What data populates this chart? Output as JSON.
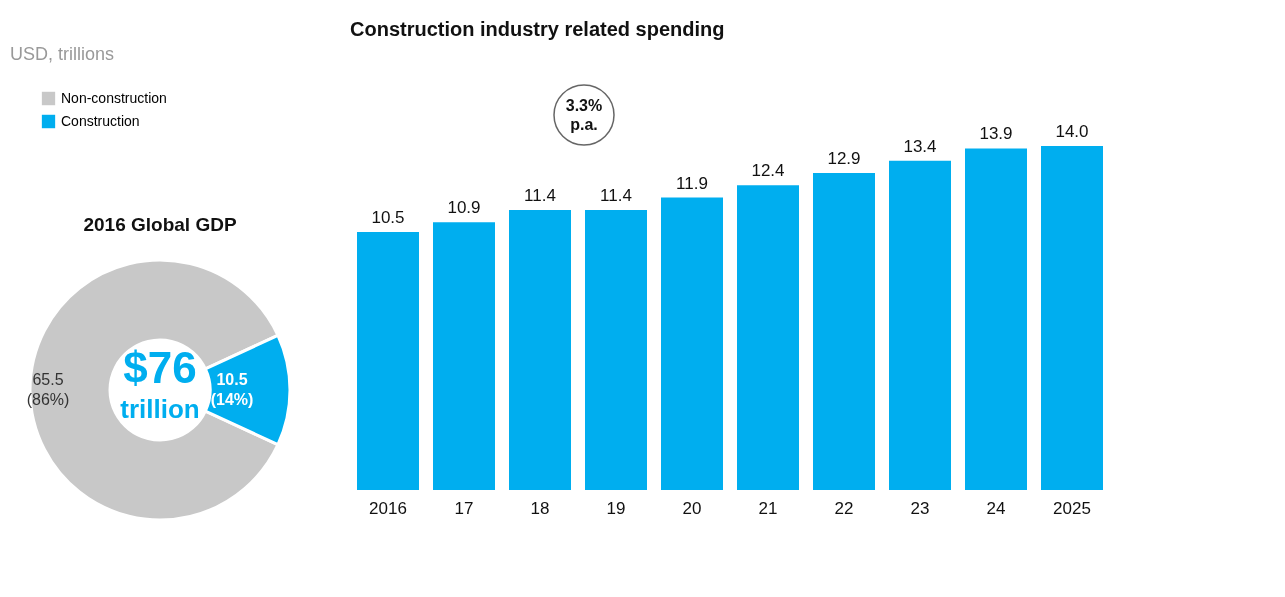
{
  "chart_data": [
    {
      "type": "donut",
      "title": "2016 Global GDP",
      "categories": [
        "Non-construction",
        "Construction"
      ],
      "values": [
        65.5,
        10.5
      ],
      "colors": [
        "#c8c8c8",
        "#00aeef"
      ],
      "value_labels": [
        "65.5 (86%)",
        "10.5 (14%)"
      ],
      "legend": "top left",
      "annotations": [
        "USD, trillions",
        "$76",
        "trillion"
      ]
    },
    {
      "type": "bar",
      "title": "Construction industry related spending",
      "categories": [
        "2016",
        "17",
        "18",
        "19",
        "20",
        "21",
        "22",
        "23",
        "24",
        "2025"
      ],
      "values": [
        10.5,
        10.9,
        11.4,
        11.4,
        11.9,
        12.4,
        12.9,
        13.4,
        13.9,
        14.0
      ],
      "color": "#00aeef",
      "value_labels": [
        "10.5",
        "10.9",
        "11.4",
        "11.4",
        "11.9",
        "12.4",
        "12.9",
        "13.4",
        "13.9",
        "14.0"
      ],
      "annotations": [
        "3.3% p.a."
      ]
    }
  ]
}
